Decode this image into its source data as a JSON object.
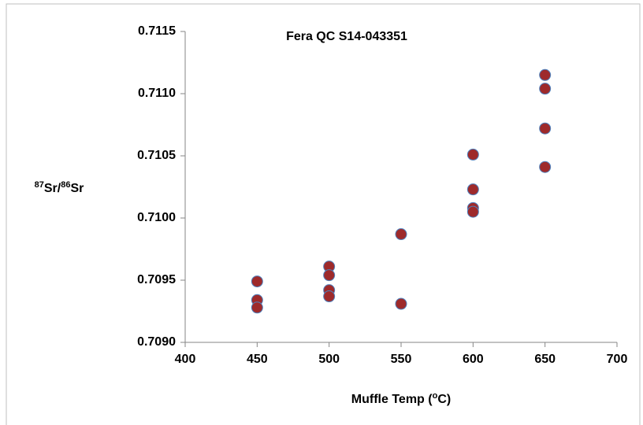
{
  "chart_data": {
    "type": "scatter",
    "title": "Fera QC S14-043351",
    "x_label": [
      "Muffle Temp (",
      "o",
      "C)"
    ],
    "y_label": [
      "87",
      "Sr/",
      "86",
      "Sr"
    ],
    "series": [
      {
        "color": "#9e2a2b",
        "edge_color": "#4f81bd",
        "x": [
          450,
          450,
          450,
          500,
          500,
          500,
          500,
          550,
          550,
          600,
          600,
          600,
          600,
          650,
          650,
          650,
          650
        ],
        "values": [
          0.70949,
          0.70934,
          0.70928,
          0.70961,
          0.70954,
          0.70942,
          0.70937,
          0.70987,
          0.70931,
          0.71051,
          0.71023,
          0.71008,
          0.71005,
          0.71115,
          0.71104,
          0.71072,
          0.71041
        ]
      }
    ],
    "xlim": [
      400,
      700
    ],
    "xticks": [
      400,
      450,
      500,
      550,
      600,
      650,
      700
    ],
    "ylim": [
      0.709,
      0.7115
    ],
    "yticks": [
      {
        "value": 0.709,
        "label": "0.7090"
      },
      0.7095,
      {
        "value": 0.71,
        "label": "0.7100"
      },
      0.7105,
      {
        "value": 0.711,
        "label": "0.7110"
      },
      0.7115
    ],
    "grid": false
  }
}
